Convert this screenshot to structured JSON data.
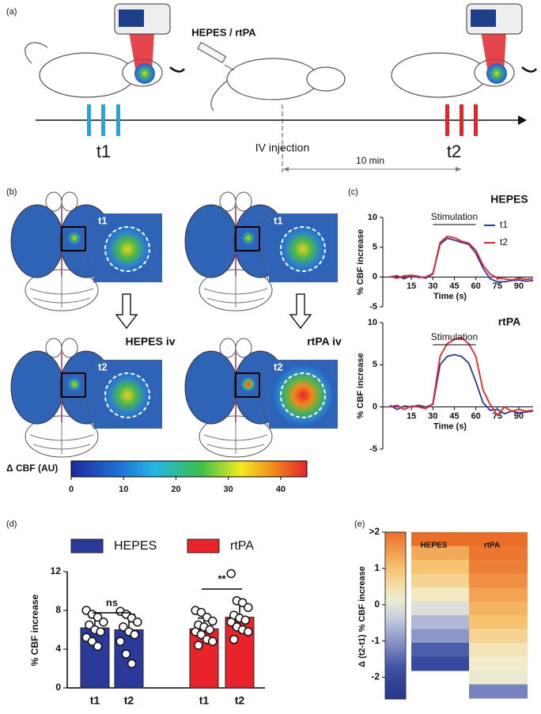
{
  "panel_a": {
    "label": "(a)",
    "treatment": "HEPES / rtPA",
    "t1": "t1",
    "t2": "t2",
    "injection": "IV injection",
    "interval": "10 min"
  },
  "panel_b": {
    "label": "(b)",
    "inset_labels": [
      "t1",
      "t1",
      "t2",
      "t2"
    ],
    "treatments": [
      "HEPES iv",
      "rtPA iv"
    ]
  },
  "chart_data": [
    {
      "type": "line",
      "panel_label": "(c)",
      "title": "HEPES",
      "annotation": "Stimulation",
      "stimulation": [
        30,
        60
      ],
      "x": [
        0,
        5,
        10,
        15,
        20,
        25,
        30,
        35,
        40,
        45,
        50,
        55,
        60,
        65,
        70,
        75,
        80,
        85,
        90,
        95,
        100
      ],
      "series": [
        {
          "name": "t1",
          "color": "#2b3a9a",
          "values": [
            0,
            0.2,
            -0.3,
            0.3,
            0.1,
            -0.2,
            0.5,
            5.5,
            6.5,
            6.2,
            5.8,
            5.5,
            4,
            1.5,
            -0.3,
            -0.8,
            -0.8,
            -0.6,
            -0.5,
            -0.7,
            -0.6
          ]
        },
        {
          "name": "t2",
          "color": "#e8232a",
          "values": [
            0.1,
            -0.2,
            0.2,
            0.3,
            -0.1,
            0,
            0.6,
            5.8,
            6.8,
            6.6,
            6,
            5.7,
            4.5,
            2,
            0.5,
            -0.2,
            -0.3,
            -0.5,
            -0.2,
            -0.4,
            -0.3
          ]
        }
      ],
      "xlim": [
        -5,
        100
      ],
      "xticks": [
        15,
        30,
        45,
        60,
        75,
        90
      ],
      "ylim": [
        -5,
        10
      ],
      "yticks": [
        -5,
        0,
        5,
        10
      ],
      "xlabel": "Time (s)",
      "ylabel": "% CBF increase",
      "legend": "upper right"
    },
    {
      "type": "line",
      "title": "rtPA",
      "annotation": "Stimulation",
      "stimulation": [
        30,
        60
      ],
      "x": [
        0,
        5,
        10,
        15,
        20,
        25,
        30,
        35,
        40,
        45,
        50,
        55,
        60,
        65,
        70,
        75,
        80,
        85,
        90,
        95,
        100
      ],
      "series": [
        {
          "name": "t1",
          "color": "#2b3a9a",
          "values": [
            0.2,
            -0.3,
            0.1,
            0,
            0.2,
            0,
            0.3,
            5,
            6,
            6.2,
            6,
            5.2,
            3,
            0.5,
            -0.4,
            -0.3,
            -0.8,
            -0.5,
            -0.7,
            -0.6,
            -0.5
          ]
        },
        {
          "name": "t2",
          "color": "#e8232a",
          "values": [
            0,
            0.2,
            -0.3,
            0.1,
            0,
            -0.2,
            0.4,
            6,
            7.5,
            8,
            8.2,
            7.5,
            6,
            2,
            0.3,
            -1,
            0,
            -0.5,
            -0.3,
            -0.5,
            -0.4
          ]
        }
      ],
      "xlim": [
        -5,
        100
      ],
      "xticks": [
        15,
        30,
        45,
        60,
        75,
        90
      ],
      "ylim": [
        -5,
        10
      ],
      "yticks": [
        -5,
        0,
        5,
        10
      ],
      "xlabel": "Time (s)",
      "ylabel": "% CBF increase"
    },
    {
      "type": "colorbar",
      "xlabel": "Δ CBF (AU)",
      "xlim": [
        0,
        45
      ],
      "xticks": [
        0,
        10,
        20,
        30,
        40
      ]
    },
    {
      "type": "bar",
      "panel_label": "(d)",
      "ylabel": "% CBF increase",
      "ylim": [
        0,
        12
      ],
      "yticks": [
        0,
        4,
        8,
        12
      ],
      "groups": [
        {
          "name": "HEPES",
          "color": "#2b3a9a",
          "categories": [
            "t1",
            "t2"
          ],
          "values": [
            6.2,
            6.0
          ],
          "errors": [
            1.1,
            1.6
          ],
          "significance": "ns",
          "points": [
            [
              8.0,
              7.6,
              7.3,
              6.8,
              6.5,
              6.0,
              5.8,
              5.2,
              4.8,
              4.3
            ],
            [
              7.9,
              7.6,
              7.2,
              6.8,
              6.3,
              5.8,
              5.5,
              4.8,
              3.5,
              2.5
            ]
          ]
        },
        {
          "name": "rtPA",
          "color": "#e8232a",
          "categories": [
            "t1",
            "t2"
          ],
          "values": [
            6.1,
            7.3
          ],
          "errors": [
            1.1,
            1.8
          ],
          "significance": "**",
          "points": [
            [
              8.0,
              7.8,
              7.3,
              6.9,
              6.5,
              6.3,
              6.0,
              5.8,
              5.5,
              5.0,
              4.8,
              4.4
            ],
            [
              11.8,
              9.0,
              8.8,
              8.3,
              7.5,
              7.2,
              7.0,
              6.8,
              6.3,
              6.0,
              5.8,
              5.0
            ]
          ]
        }
      ]
    },
    {
      "type": "heatmap",
      "panel_label": "(e)",
      "ylabel": "Δ (t2-t1) % CBF increase",
      "ylim": [
        -2.6,
        2
      ],
      "yticks": [
        -2,
        -1,
        0,
        1,
        {
          "value": 2,
          "label": ">2"
        }
      ],
      "columns": [
        {
          "name": "HEPES",
          "values": [
            2.1,
            1.3,
            1.0,
            0.7,
            0.3,
            -0.1,
            -0.6,
            -1.0,
            -1.6,
            -1.9
          ]
        },
        {
          "name": "rtPA",
          "values": [
            2.1,
            1.9,
            1.8,
            1.6,
            1.4,
            1.2,
            1.0,
            0.7,
            0.4,
            0.2,
            0.1,
            -1.2
          ]
        }
      ]
    }
  ]
}
